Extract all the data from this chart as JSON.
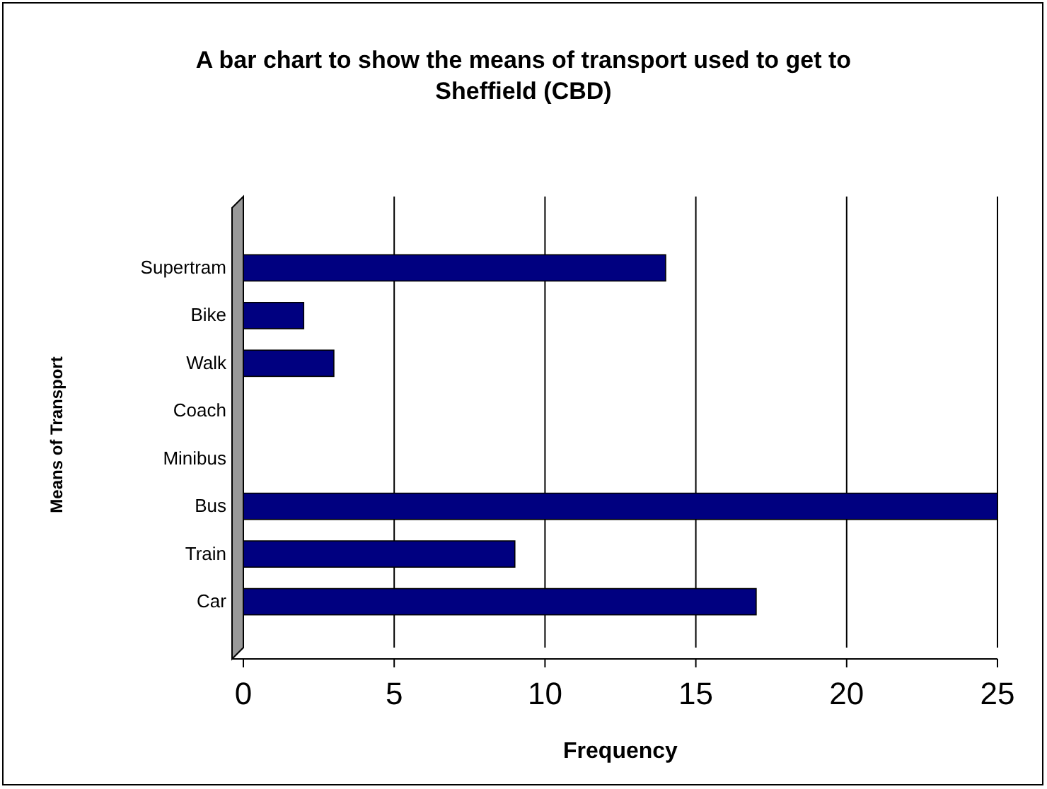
{
  "chart_data": {
    "type": "bar",
    "orientation": "horizontal",
    "title": "A bar chart to show the means of transport used to get to Sheffield (CBD)",
    "xlabel": "Frequency",
    "ylabel": "Means of Transport",
    "categories": [
      "Supertram",
      "Bike",
      "Walk",
      "Coach",
      "Minibus",
      "Bus",
      "Train",
      "Car"
    ],
    "values": [
      14,
      2,
      3,
      0,
      0,
      25,
      9,
      17
    ],
    "color": "#000080",
    "xlim": [
      0,
      25
    ],
    "xticks": [
      0,
      5,
      10,
      15,
      20,
      25
    ],
    "grid": "x"
  }
}
